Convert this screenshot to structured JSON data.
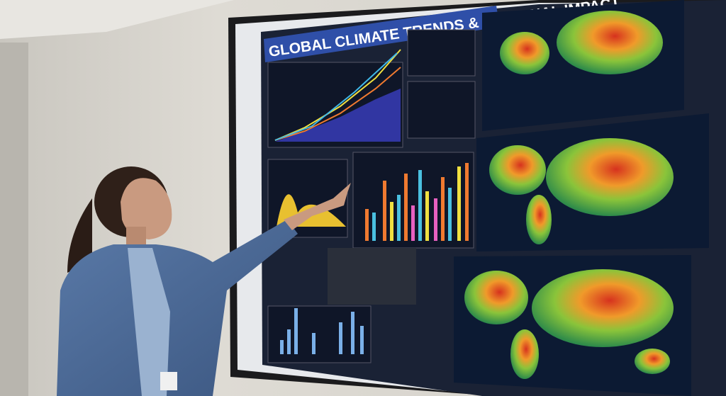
{
  "screen": {
    "title": "GLOBAL CLIMATE TRENDS & REGIONAL IMPACT"
  }
}
